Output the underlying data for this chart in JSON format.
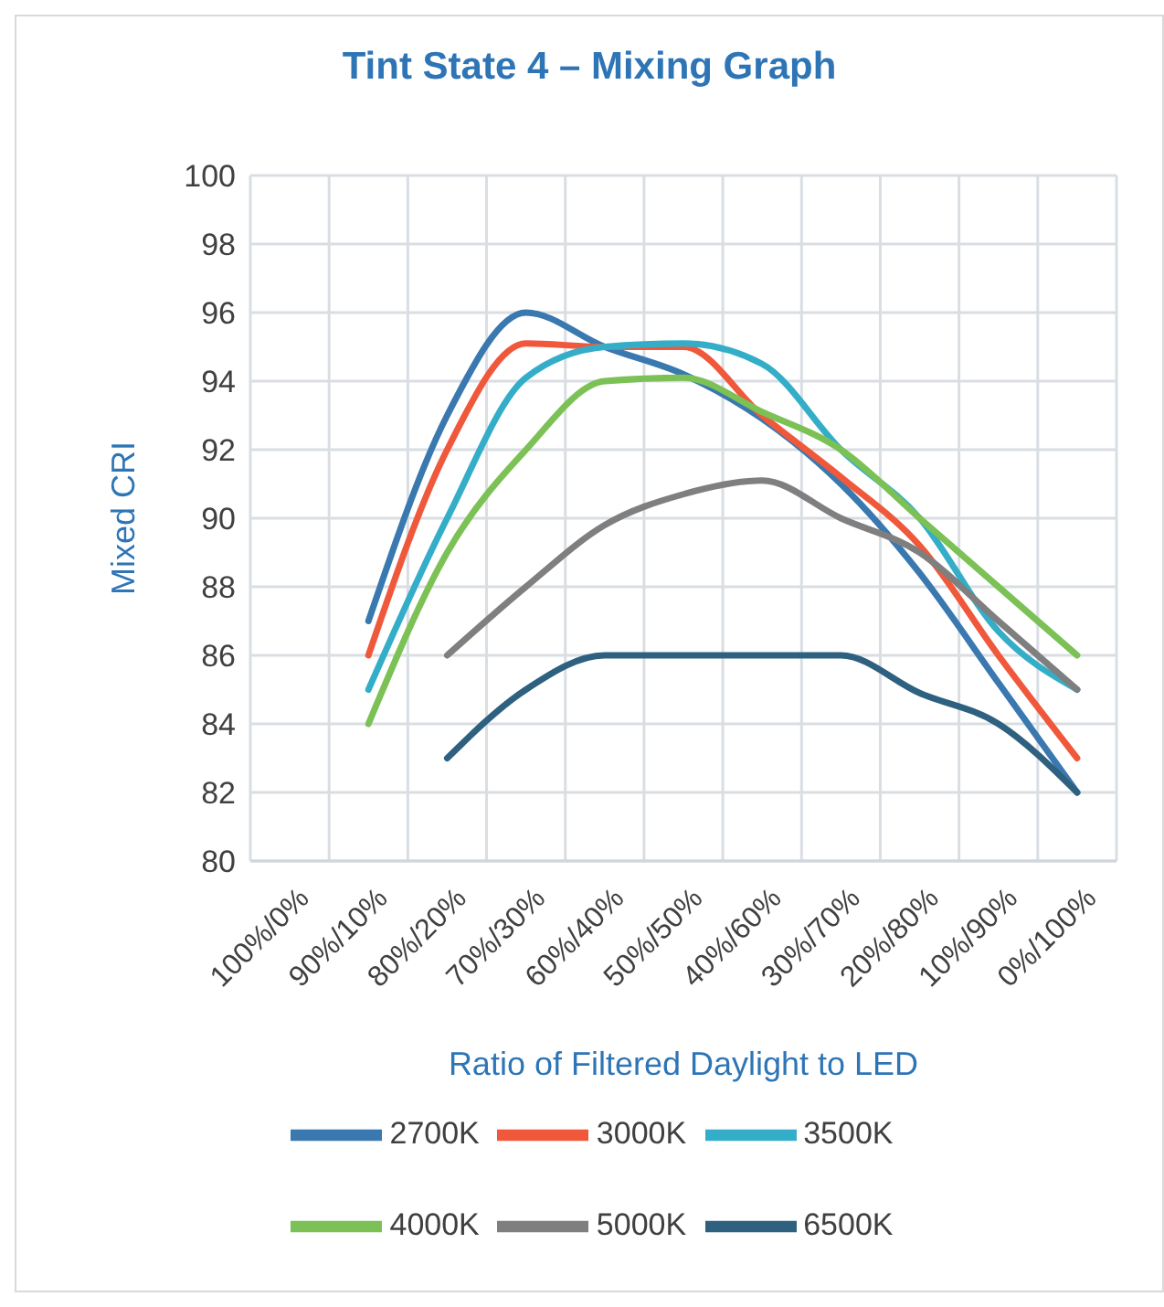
{
  "chart_data": {
    "type": "line",
    "title": "Tint State 4 – Mixing Graph",
    "xlabel": "Ratio of Filtered Daylight to LED",
    "ylabel": "Mixed CRI",
    "categories": [
      "100%/0%",
      "90%/10%",
      "80%/20%",
      "70%/30%",
      "60%/40%",
      "50%/50%",
      "40%/60%",
      "30%/70%",
      "20%/80%",
      "10%/90%",
      "0%/100%"
    ],
    "series": [
      {
        "name": "2700K",
        "color": "#3a78b0",
        "values": [
          null,
          87,
          93,
          96,
          95,
          94.2,
          92.9,
          91,
          88.4,
          85.2,
          82
        ]
      },
      {
        "name": "3000K",
        "color": "#f0583c",
        "values": [
          null,
          86,
          92,
          95.1,
          95,
          95,
          93,
          91.2,
          89.2,
          86,
          83
        ]
      },
      {
        "name": "3500K",
        "color": "#34aec8",
        "values": [
          null,
          85,
          90,
          94.1,
          95,
          95.1,
          94.5,
          92,
          90,
          86.7,
          85
        ]
      },
      {
        "name": "4000K",
        "color": "#7cc155",
        "values": [
          null,
          84,
          89,
          92,
          94,
          94.1,
          93.1,
          92,
          90,
          88,
          86
        ]
      },
      {
        "name": "5000K",
        "color": "#7f7f7f",
        "values": [
          null,
          null,
          86,
          88,
          89.8,
          90.7,
          91.1,
          90,
          89,
          87,
          85
        ]
      },
      {
        "name": "6500K",
        "color": "#2e6080",
        "values": [
          null,
          null,
          83,
          85,
          86,
          86,
          86,
          86,
          84.9,
          84,
          82
        ]
      }
    ],
    "ylim": [
      80,
      100
    ],
    "yticks": [
      80,
      82,
      84,
      86,
      88,
      90,
      92,
      94,
      96,
      98,
      100
    ],
    "grid": true,
    "legend": "bottom",
    "marker": "none",
    "line_style": "solid"
  }
}
